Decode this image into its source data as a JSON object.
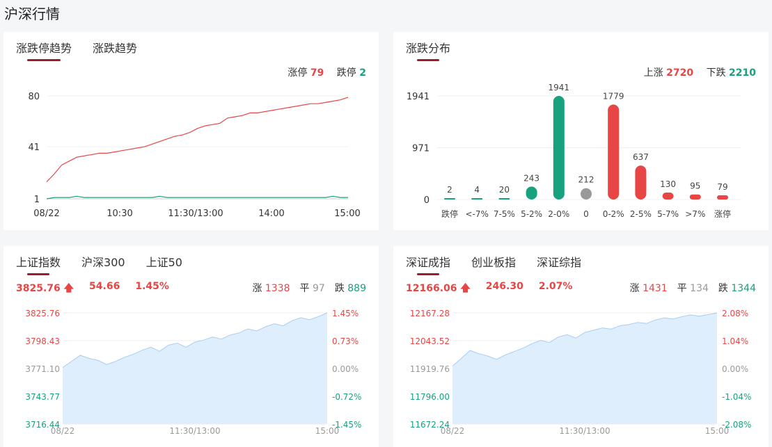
{
  "page_title": "沪深行情",
  "limit_card": {
    "tabs": [
      "涨跌停趋势",
      "涨跌趋势"
    ],
    "limit_up_label": "涨停",
    "limit_up_value": "79",
    "limit_down_label": "跌停",
    "limit_down_value": "2"
  },
  "dist_card": {
    "tabs": [
      "涨跌分布"
    ],
    "up_label": "上涨",
    "up_value": "2720",
    "down_label": "下跌",
    "down_value": "2210"
  },
  "sh_card": {
    "tabs": [
      "上证指数",
      "沪深300",
      "上证50"
    ],
    "price": "3825.76",
    "change": "54.66",
    "pct": "1.45%",
    "up_label": "涨",
    "up_value": "1338",
    "flat_label": "平",
    "flat_value": "97",
    "down_label": "跌",
    "down_value": "889"
  },
  "sz_card": {
    "tabs": [
      "深证成指",
      "创业板指",
      "深证综指"
    ],
    "price": "12166.06",
    "change": "246.30",
    "pct": "2.07%",
    "up_label": "涨",
    "up_value": "1431",
    "flat_label": "平",
    "flat_value": "134",
    "down_label": "跌",
    "down_value": "1344"
  },
  "colors": {
    "up": "#e84545",
    "down": "#18a17d",
    "flat": "#999999",
    "accent": "#9b1c2a",
    "area": "#deeefc"
  },
  "chart_data": [
    {
      "type": "line",
      "id": "limit-trend",
      "x_ticks": [
        "08/22",
        "10:30",
        "11:30/13:00",
        "14:00",
        "15:00"
      ],
      "y_ticks": [
        "80",
        "41",
        "1"
      ],
      "ylim": [
        1,
        80
      ],
      "series": [
        {
          "name": "涨停",
          "color": "#e84545",
          "values": [
            14,
            20,
            27,
            30,
            33,
            34,
            35,
            36,
            36,
            37,
            38,
            39,
            40,
            41,
            43,
            45,
            47,
            49,
            50,
            52,
            55,
            57,
            58,
            59,
            63,
            64,
            65,
            67,
            67,
            68,
            69,
            70,
            71,
            72,
            73,
            74,
            74,
            75,
            76,
            77,
            79
          ]
        },
        {
          "name": "跌停",
          "color": "#18a17d",
          "values": [
            1,
            2,
            2,
            2,
            3,
            2,
            2,
            2,
            2,
            2,
            2,
            2,
            2,
            2,
            2,
            3,
            2,
            2,
            2,
            2,
            2,
            2,
            2,
            2,
            2,
            2,
            2,
            2,
            2,
            2,
            2,
            2,
            2,
            2,
            2,
            2,
            2,
            2,
            3,
            2,
            2
          ]
        }
      ]
    },
    {
      "type": "bar",
      "id": "change-distribution",
      "categories": [
        "跌停",
        "<-7%",
        "7-5%",
        "5-2%",
        "2-0%",
        "0",
        "0-2%",
        "2-5%",
        "5-7%",
        ">7%",
        "涨停"
      ],
      "values": [
        2,
        4,
        20,
        243,
        1941,
        212,
        1779,
        637,
        130,
        95,
        79
      ],
      "colors": [
        "#18a17d",
        "#18a17d",
        "#18a17d",
        "#18a17d",
        "#18a17d",
        "#999999",
        "#e84545",
        "#e84545",
        "#e84545",
        "#e84545",
        "#e84545"
      ],
      "y_ticks": [
        "1941",
        "971",
        "0"
      ],
      "ylim": [
        0,
        1941
      ]
    },
    {
      "type": "area",
      "id": "sh-index",
      "x_ticks": [
        "08/22",
        "11:30/13:00",
        "15:00"
      ],
      "y_ticks_left": [
        "3825.76",
        "3798.43",
        "3771.10",
        "3743.77",
        "3716.44"
      ],
      "y_ticks_right": [
        "1.45%",
        "0.73%",
        "0.00%",
        "-0.72%",
        "-1.45%"
      ],
      "ylim": [
        3716.44,
        3825.76
      ],
      "values": [
        3772,
        3778,
        3784,
        3781,
        3779,
        3775,
        3778,
        3782,
        3785,
        3789,
        3792,
        3788,
        3794,
        3796,
        3792,
        3797,
        3799,
        3802,
        3800,
        3804,
        3806,
        3810,
        3808,
        3812,
        3815,
        3813,
        3818,
        3821,
        3819,
        3822,
        3825.76
      ]
    },
    {
      "type": "area",
      "id": "sz-index",
      "x_ticks": [
        "08/22",
        "11:30/13:00",
        "15:00"
      ],
      "y_ticks_left": [
        "12167.28",
        "12043.52",
        "11919.76",
        "11796.00",
        "11672.24"
      ],
      "y_ticks_right": [
        "2.08%",
        "1.04%",
        "0.00%",
        "-1.04%",
        "-2.08%"
      ],
      "ylim": [
        11672.24,
        12167.28
      ],
      "values": [
        11930,
        11965,
        12000,
        11985,
        11975,
        11960,
        11980,
        11995,
        12010,
        12030,
        12045,
        12035,
        12060,
        12070,
        12055,
        12080,
        12090,
        12100,
        12095,
        12110,
        12115,
        12125,
        12120,
        12135,
        12145,
        12140,
        12150,
        12158,
        12152,
        12160,
        12166.06
      ]
    }
  ]
}
